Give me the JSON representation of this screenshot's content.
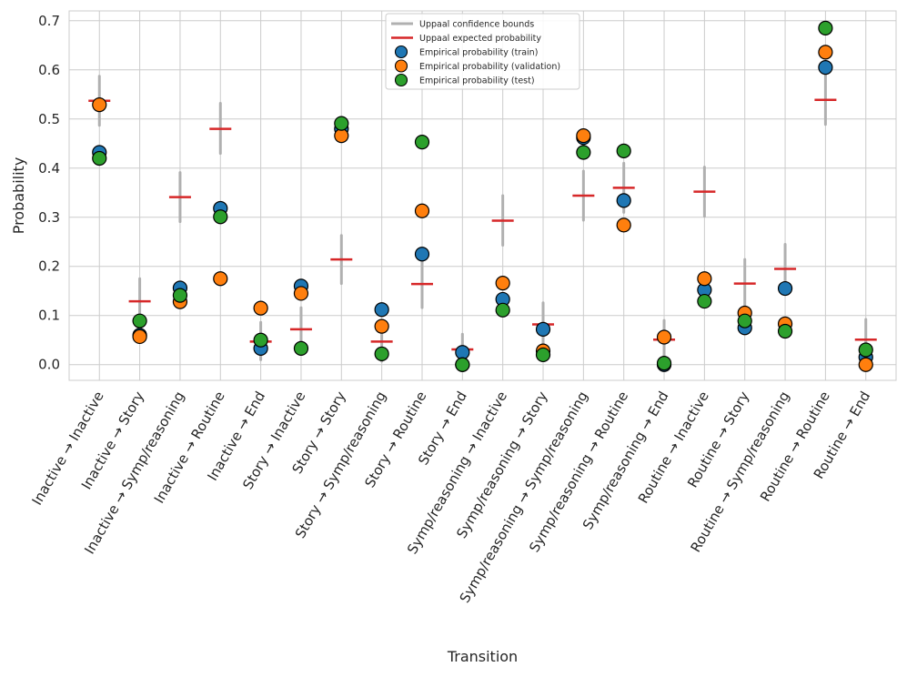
{
  "chart_data": {
    "type": "scatter",
    "title": "",
    "xlabel": "Transition",
    "ylabel": "Probability",
    "ylim": [
      -0.032,
      0.72
    ],
    "yticks": [
      "0.0",
      "0.1",
      "0.2",
      "0.3",
      "0.4",
      "0.5",
      "0.6",
      "0.7"
    ],
    "grid": true,
    "legend_position": "top-center",
    "categories": [
      "Inactive → Inactive",
      "Inactive → Story",
      "Inactive → Symp/reasoning",
      "Inactive → Routine",
      "Inactive → End",
      "Story → Inactive",
      "Story → Story",
      "Story → Symp/reasoning",
      "Story → Routine",
      "Story → End",
      "Symp/reasoning → Inactive",
      "Symp/reasoning → Story",
      "Symp/reasoning → Symp/reasoning",
      "Symp/reasoning → Routine",
      "Symp/reasoning → End",
      "Routine → Inactive",
      "Routine → Story",
      "Routine → Symp/reasoning",
      "Routine → Routine",
      "Routine → End"
    ],
    "uppaal_expected": [
      0.537,
      0.129,
      0.341,
      0.48,
      0.047,
      0.072,
      0.214,
      0.047,
      0.164,
      0.031,
      0.293,
      0.082,
      0.344,
      0.36,
      0.051,
      0.352,
      0.165,
      0.195,
      0.539,
      0.051
    ],
    "uppaal_bounds": [
      [
        0.487,
        0.587
      ],
      [
        0.079,
        0.175
      ],
      [
        0.291,
        0.391
      ],
      [
        0.43,
        0.532
      ],
      [
        0.01,
        0.086
      ],
      [
        0.025,
        0.116
      ],
      [
        0.165,
        0.263
      ],
      [
        0.007,
        0.087
      ],
      [
        0.116,
        0.215
      ],
      [
        0.0,
        0.062
      ],
      [
        0.243,
        0.344
      ],
      [
        0.036,
        0.126
      ],
      [
        0.294,
        0.394
      ],
      [
        0.31,
        0.41
      ],
      [
        0.012,
        0.09
      ],
      [
        0.302,
        0.402
      ],
      [
        0.116,
        0.214
      ],
      [
        0.146,
        0.245
      ],
      [
        0.489,
        0.589
      ],
      [
        0.012,
        0.092
      ]
    ],
    "series": [
      {
        "name": "Empirical probability (train)",
        "color": "#1f77b4",
        "values": [
          0.432,
          0.06,
          0.156,
          0.318,
          0.033,
          0.16,
          0.48,
          0.112,
          0.225,
          0.025,
          0.133,
          0.072,
          0.462,
          0.334,
          0.0,
          0.152,
          0.075,
          0.155,
          0.605,
          0.015
        ]
      },
      {
        "name": "Empirical probability (validation)",
        "color": "#ff7f0e",
        "values": [
          0.529,
          0.057,
          0.128,
          0.175,
          0.115,
          0.145,
          0.466,
          0.078,
          0.313,
          0.0,
          0.166,
          0.028,
          0.466,
          0.284,
          0.056,
          0.175,
          0.105,
          0.083,
          0.636,
          0.0
        ]
      },
      {
        "name": "Empirical probability (test)",
        "color": "#2ca02c",
        "values": [
          0.42,
          0.089,
          0.141,
          0.301,
          0.05,
          0.033,
          0.491,
          0.022,
          0.453,
          0.0,
          0.111,
          0.02,
          0.432,
          0.435,
          0.003,
          0.129,
          0.089,
          0.068,
          0.685,
          0.03
        ]
      }
    ],
    "legend": [
      {
        "label": "Uppaal confidence bounds",
        "kind": "bounds",
        "color": "#b0b0b0"
      },
      {
        "label": "Uppaal expected probability",
        "kind": "expected",
        "color": "#d62728"
      },
      {
        "label": "Empirical probability (train)",
        "kind": "marker",
        "color": "#1f77b4"
      },
      {
        "label": "Empirical probability (validation)",
        "kind": "marker",
        "color": "#ff7f0e"
      },
      {
        "label": "Empirical probability (test)",
        "kind": "marker",
        "color": "#2ca02c"
      }
    ]
  }
}
